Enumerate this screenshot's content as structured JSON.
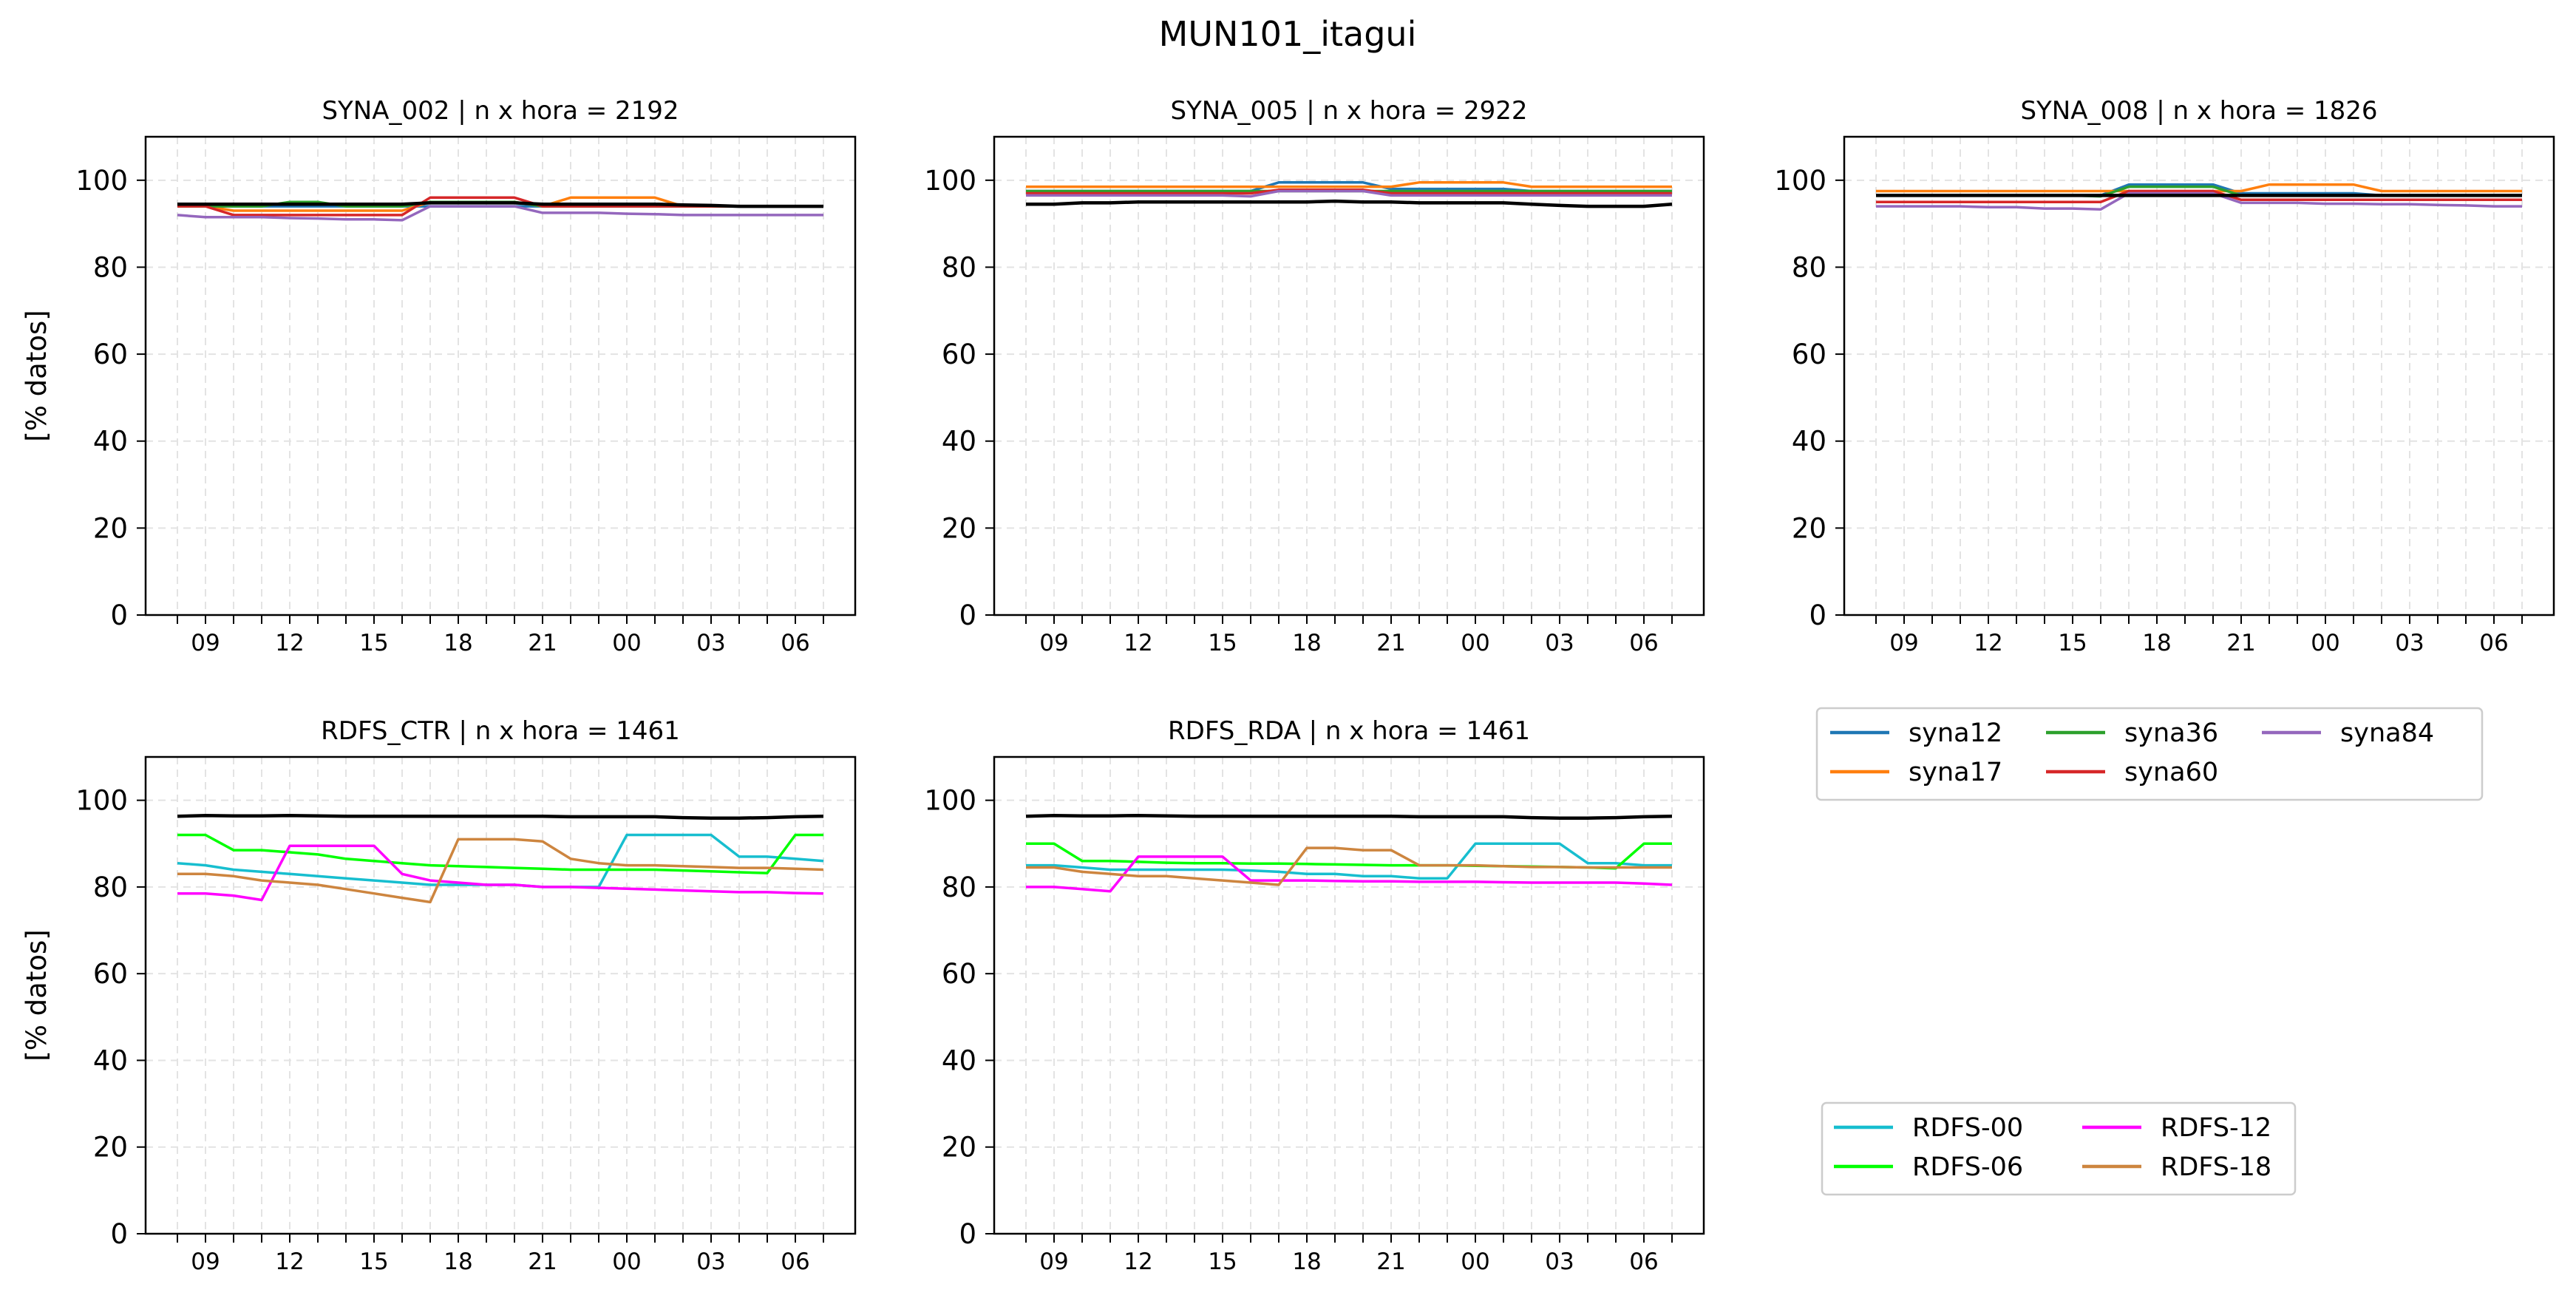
{
  "figure_title": "MUN101_itagui",
  "ylabel": "[% datos]",
  "x_tick_labels": [
    "09",
    "12",
    "15",
    "18",
    "21",
    "00",
    "03",
    "06"
  ],
  "y_tick_labels": [
    "0",
    "20",
    "40",
    "60",
    "80",
    "100"
  ],
  "legend_syna": [
    {
      "label": "syna12",
      "color": "#1f77b4"
    },
    {
      "label": "syna17",
      "color": "#ff7f0e"
    },
    {
      "label": "syna36",
      "color": "#2ca02c"
    },
    {
      "label": "syna60",
      "color": "#d62728"
    },
    {
      "label": "syna84",
      "color": "#9467bd"
    }
  ],
  "legend_rdfs": [
    {
      "label": "RDFS-00",
      "color": "#17becf"
    },
    {
      "label": "RDFS-06",
      "color": "#00ff00"
    },
    {
      "label": "RDFS-12",
      "color": "#ff00ff"
    },
    {
      "label": "RDFS-18",
      "color": "#cd853f"
    }
  ],
  "chart_data": [
    {
      "type": "line",
      "title": "SYNA_002 | n x hora =  2192",
      "ylabel": "[% datos]",
      "ylim": [
        0,
        110
      ],
      "x": [
        "08",
        "09",
        "10",
        "11",
        "12",
        "13",
        "14",
        "15",
        "16",
        "17",
        "18",
        "19",
        "20",
        "21",
        "22",
        "23",
        "00",
        "01",
        "02",
        "03",
        "04",
        "05",
        "06",
        "07"
      ],
      "series": [
        {
          "name": "syna12",
          "color": "#1f77b4",
          "values": [
            94,
            94,
            94,
            94,
            94,
            94,
            94,
            94,
            94,
            94,
            94,
            94,
            94,
            94,
            94,
            94,
            94,
            94,
            94,
            94,
            94,
            94,
            94,
            94
          ]
        },
        {
          "name": "syna17",
          "color": "#ff7f0e",
          "values": [
            94,
            94,
            93,
            93,
            93,
            93,
            93,
            93,
            93,
            95,
            95,
            95,
            95,
            94,
            96,
            96,
            96,
            96,
            94,
            94,
            94,
            94,
            94,
            94
          ]
        },
        {
          "name": "syna36",
          "color": "#2ca02c",
          "values": [
            94,
            94,
            94,
            94,
            95,
            95,
            94,
            94,
            94,
            95,
            95,
            95,
            95,
            94,
            94,
            94,
            94,
            94,
            94,
            94,
            94,
            94,
            94,
            94
          ]
        },
        {
          "name": "syna60",
          "color": "#d62728",
          "values": [
            94,
            94,
            92,
            92,
            92,
            92,
            92,
            92,
            92,
            96,
            96,
            96,
            96,
            94,
            94,
            94,
            94,
            94,
            94,
            94,
            94,
            94,
            94,
            94
          ]
        },
        {
          "name": "syna84",
          "color": "#9467bd",
          "values": [
            92,
            91.5,
            91.5,
            91.5,
            91.3,
            91.2,
            91,
            91,
            90.8,
            94,
            94,
            94,
            94,
            92.5,
            92.5,
            92.5,
            92.3,
            92.2,
            92,
            92,
            92,
            92,
            92,
            92
          ]
        },
        {
          "name": "",
          "color": "#000000",
          "values": [
            94.5,
            94.5,
            94.5,
            94.5,
            94.5,
            94.5,
            94.5,
            94.5,
            94.5,
            94.8,
            94.8,
            94.8,
            94.8,
            94.5,
            94.5,
            94.5,
            94.5,
            94.5,
            94.3,
            94.2,
            94,
            94,
            94,
            94
          ]
        }
      ]
    },
    {
      "type": "line",
      "title": "SYNA_005 | n x hora =  2922",
      "ylim": [
        0,
        110
      ],
      "x": [
        "08",
        "09",
        "10",
        "11",
        "12",
        "13",
        "14",
        "15",
        "16",
        "17",
        "18",
        "19",
        "20",
        "21",
        "22",
        "23",
        "00",
        "01",
        "02",
        "03",
        "04",
        "05",
        "06",
        "07"
      ],
      "series": [
        {
          "name": "syna12",
          "color": "#1f77b4",
          "values": [
            97.5,
            97.5,
            97.5,
            97.5,
            97.5,
            97.5,
            97.5,
            97.5,
            97.5,
            99.5,
            99.5,
            99.5,
            99.5,
            98,
            98,
            98,
            98,
            98,
            97.5,
            97.5,
            97.5,
            97.5,
            97.5,
            97.5
          ]
        },
        {
          "name": "syna17",
          "color": "#ff7f0e",
          "values": [
            98.5,
            98.5,
            98.5,
            98.5,
            98.5,
            98.5,
            98.5,
            98.5,
            98.5,
            98.5,
            98.5,
            98.5,
            98.5,
            98.5,
            99.5,
            99.5,
            99.5,
            99.5,
            98.5,
            98.5,
            98.5,
            98.5,
            98.5,
            98.5
          ]
        },
        {
          "name": "syna36",
          "color": "#2ca02c",
          "values": [
            97.5,
            97.5,
            97.5,
            97.5,
            97.5,
            97.5,
            97.5,
            97.5,
            97.5,
            97.5,
            97.5,
            97.5,
            97.5,
            97.5,
            97.5,
            97.5,
            97.5,
            97.5,
            97.5,
            97.5,
            97.5,
            97.5,
            97.5,
            97.5
          ]
        },
        {
          "name": "syna60",
          "color": "#d62728",
          "values": [
            97,
            97,
            97,
            97,
            97,
            97,
            97,
            97,
            97,
            97.8,
            97.8,
            97.8,
            97.8,
            97,
            97,
            97,
            97,
            97,
            97,
            97,
            97,
            97,
            97,
            97
          ]
        },
        {
          "name": "syna84",
          "color": "#9467bd",
          "values": [
            96.5,
            96.5,
            96.5,
            96.5,
            96.5,
            96.5,
            96.5,
            96.5,
            96.3,
            97.5,
            97.5,
            97.5,
            97.5,
            96.5,
            96.5,
            96.5,
            96.5,
            96.5,
            96.5,
            96.5,
            96.5,
            96.5,
            96.5,
            96.5
          ]
        },
        {
          "name": "",
          "color": "#000000",
          "values": [
            94.5,
            94.5,
            94.8,
            94.8,
            95,
            95,
            95,
            95,
            95,
            95,
            95,
            95.2,
            95,
            95,
            94.8,
            94.8,
            94.8,
            94.8,
            94.5,
            94.2,
            94,
            94,
            94,
            94.5
          ]
        }
      ]
    },
    {
      "type": "line",
      "title": "SYNA_008 | n x hora =  1826",
      "ylim": [
        0,
        110
      ],
      "x": [
        "08",
        "09",
        "10",
        "11",
        "12",
        "13",
        "14",
        "15",
        "16",
        "17",
        "18",
        "19",
        "20",
        "21",
        "22",
        "23",
        "00",
        "01",
        "02",
        "03",
        "04",
        "05",
        "06",
        "07"
      ],
      "series": [
        {
          "name": "syna12",
          "color": "#1f77b4",
          "values": [
            96.5,
            96.5,
            96.5,
            96.5,
            96.5,
            96.5,
            96.5,
            96.5,
            96.5,
            99,
            99,
            99,
            99,
            97,
            97,
            97,
            97,
            97,
            96.5,
            96.5,
            96.5,
            96.5,
            96.5,
            96.5
          ]
        },
        {
          "name": "syna17",
          "color": "#ff7f0e",
          "values": [
            97.5,
            97.5,
            97.5,
            97.5,
            97.5,
            97.5,
            97.5,
            97.5,
            97.5,
            97.5,
            97.5,
            97.5,
            97.5,
            97.5,
            99,
            99,
            99,
            99,
            97.5,
            97.5,
            97.5,
            97.5,
            97.5,
            97.5
          ]
        },
        {
          "name": "syna36",
          "color": "#2ca02c",
          "values": [
            96.5,
            96.5,
            96.5,
            96.5,
            96.5,
            96.5,
            96.5,
            96.5,
            96.3,
            98.5,
            98.5,
            98.5,
            98.5,
            96.5,
            96.5,
            96.5,
            96.5,
            96.5,
            96.5,
            96.5,
            96.5,
            96.5,
            96.5,
            96.5
          ]
        },
        {
          "name": "syna60",
          "color": "#d62728",
          "values": [
            95,
            95,
            95,
            95,
            95,
            95,
            95,
            95,
            95,
            97.5,
            97.5,
            97.5,
            97.5,
            95.5,
            95.5,
            95.5,
            95.5,
            95.5,
            95.5,
            95.5,
            95.5,
            95.5,
            95.5,
            95.5
          ]
        },
        {
          "name": "syna84",
          "color": "#9467bd",
          "values": [
            94,
            94,
            94,
            94,
            93.8,
            93.8,
            93.5,
            93.5,
            93.3,
            97,
            97,
            97,
            97,
            94.8,
            94.8,
            94.8,
            94.6,
            94.6,
            94.5,
            94.5,
            94.3,
            94.2,
            94,
            94
          ]
        },
        {
          "name": "",
          "color": "#000000",
          "values": [
            96.5,
            96.5,
            96.5,
            96.5,
            96.5,
            96.5,
            96.5,
            96.5,
            96.5,
            96.5,
            96.5,
            96.5,
            96.5,
            96.5,
            96.5,
            96.5,
            96.5,
            96.5,
            96.5,
            96.5,
            96.5,
            96.5,
            96.5,
            96.5
          ]
        }
      ]
    },
    {
      "type": "line",
      "title": "RDFS_CTR | n x hora =  1461",
      "ylabel": "[% datos]",
      "ylim": [
        0,
        110
      ],
      "x": [
        "08",
        "09",
        "10",
        "11",
        "12",
        "13",
        "14",
        "15",
        "16",
        "17",
        "18",
        "19",
        "20",
        "21",
        "22",
        "23",
        "00",
        "01",
        "02",
        "03",
        "04",
        "05",
        "06",
        "07"
      ],
      "series": [
        {
          "name": "RDFS-00",
          "color": "#17becf",
          "values": [
            85.5,
            85,
            84,
            83.5,
            83,
            82.5,
            82,
            81.5,
            81,
            80.5,
            80.5,
            80.5,
            80.5,
            80,
            80,
            80,
            92,
            92,
            92,
            92,
            87,
            87,
            86.5,
            86
          ]
        },
        {
          "name": "RDFS-06",
          "color": "#00ff00",
          "values": [
            92,
            92,
            88.5,
            88.5,
            88,
            87.5,
            86.5,
            86,
            85.5,
            85,
            84.8,
            84.6,
            84.4,
            84.2,
            84,
            84,
            84,
            84,
            83.8,
            83.6,
            83.4,
            83.2,
            92,
            92
          ]
        },
        {
          "name": "RDFS-12",
          "color": "#ff00ff",
          "values": [
            78.5,
            78.5,
            78,
            77,
            89.5,
            89.5,
            89.5,
            89.5,
            83,
            81.5,
            81,
            80.5,
            80.5,
            80,
            80,
            79.8,
            79.6,
            79.4,
            79.2,
            79,
            78.8,
            78.8,
            78.6,
            78.5
          ]
        },
        {
          "name": "RDFS-18",
          "color": "#cd853f",
          "values": [
            83,
            83,
            82.5,
            81.5,
            81,
            80.5,
            79.5,
            78.5,
            77.5,
            76.5,
            91,
            91,
            91,
            90.5,
            86.5,
            85.5,
            85,
            85,
            84.8,
            84.6,
            84.4,
            84.4,
            84.2,
            84
          ]
        },
        {
          "name": "",
          "color": "#000000",
          "values": [
            96.3,
            96.5,
            96.4,
            96.4,
            96.5,
            96.4,
            96.3,
            96.3,
            96.3,
            96.3,
            96.3,
            96.3,
            96.3,
            96.3,
            96.2,
            96.2,
            96.2,
            96.2,
            96,
            95.9,
            95.9,
            96,
            96.2,
            96.3
          ]
        }
      ]
    },
    {
      "type": "line",
      "title": "RDFS_RDA | n x hora =  1461",
      "ylim": [
        0,
        110
      ],
      "x": [
        "08",
        "09",
        "10",
        "11",
        "12",
        "13",
        "14",
        "15",
        "16",
        "17",
        "18",
        "19",
        "20",
        "21",
        "22",
        "23",
        "00",
        "01",
        "02",
        "03",
        "04",
        "05",
        "06",
        "07"
      ],
      "series": [
        {
          "name": "RDFS-00",
          "color": "#17becf",
          "values": [
            85,
            85,
            84.5,
            84,
            84,
            84,
            84,
            84,
            83.8,
            83.5,
            83,
            83,
            82.5,
            82.5,
            82,
            82,
            90,
            90,
            90,
            90,
            85.5,
            85.5,
            85,
            85
          ]
        },
        {
          "name": "RDFS-06",
          "color": "#00ff00",
          "values": [
            90,
            90,
            86,
            86,
            85.8,
            85.6,
            85.5,
            85.5,
            85.4,
            85.4,
            85.3,
            85.2,
            85.1,
            85,
            85,
            85,
            84.9,
            84.8,
            84.7,
            84.6,
            84.5,
            84.3,
            90,
            90
          ]
        },
        {
          "name": "RDFS-12",
          "color": "#ff00ff",
          "values": [
            80,
            80,
            79.5,
            79,
            87,
            87,
            87,
            87,
            81.5,
            81.5,
            81.5,
            81.4,
            81.3,
            81.3,
            81.2,
            81.2,
            81.2,
            81.1,
            81,
            81,
            81,
            81,
            80.8,
            80.5
          ]
        },
        {
          "name": "RDFS-18",
          "color": "#cd853f",
          "values": [
            84.5,
            84.5,
            83.5,
            83,
            82.5,
            82.5,
            82,
            81.5,
            81,
            80.5,
            89,
            89,
            88.5,
            88.5,
            85,
            85,
            85,
            84.8,
            84.6,
            84.6,
            84.5,
            84.5,
            84.5,
            84.5
          ]
        },
        {
          "name": "",
          "color": "#000000",
          "values": [
            96.3,
            96.5,
            96.4,
            96.4,
            96.5,
            96.4,
            96.3,
            96.3,
            96.3,
            96.3,
            96.3,
            96.3,
            96.3,
            96.3,
            96.2,
            96.2,
            96.2,
            96.2,
            96,
            95.9,
            95.9,
            96,
            96.2,
            96.3
          ]
        }
      ]
    }
  ]
}
